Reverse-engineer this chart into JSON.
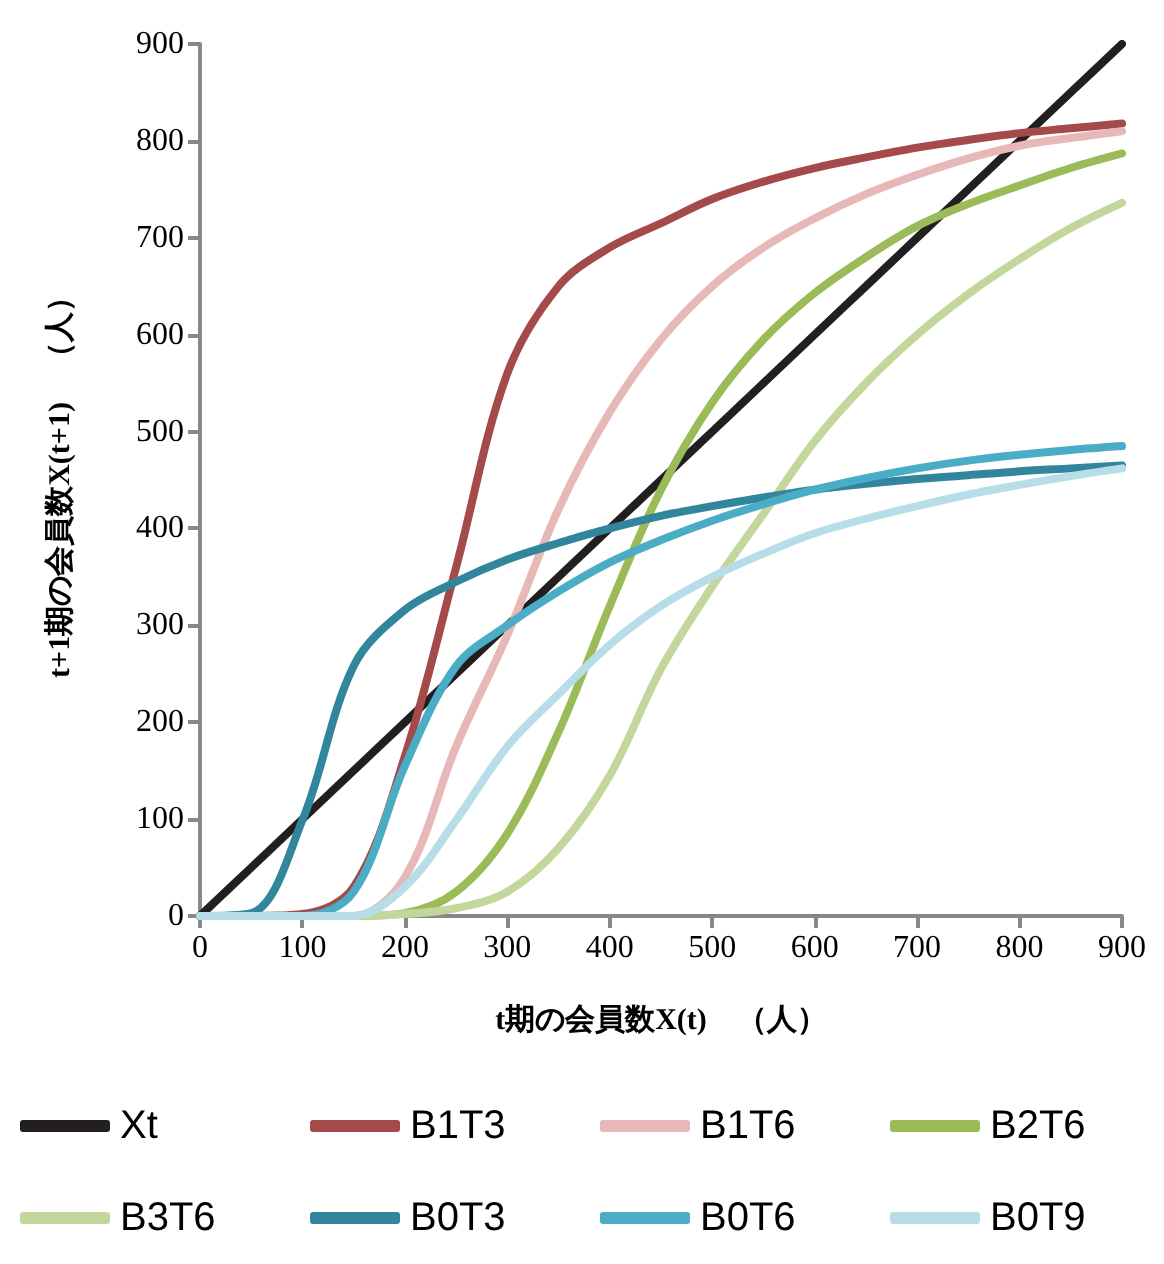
{
  "chart_data": {
    "type": "line",
    "xlabel": "t期の会員数X(t)　（人）",
    "ylabel": "t+1期の会員数X(t+1)　（人）",
    "x": [
      0,
      50,
      100,
      150,
      200,
      250,
      300,
      350,
      400,
      450,
      500,
      550,
      600,
      650,
      700,
      750,
      800,
      850,
      900
    ],
    "xlim": [
      0,
      900
    ],
    "xticks": [
      0,
      100,
      200,
      300,
      400,
      500,
      600,
      700,
      800,
      900
    ],
    "ylim": [
      0,
      900
    ],
    "yticks": [
      0,
      100,
      200,
      300,
      400,
      500,
      600,
      700,
      800,
      900
    ],
    "grid": false,
    "legend": "bottom",
    "marker": "none",
    "line_style": "solid",
    "series": [
      {
        "name": "Xt",
        "color": "#231f20",
        "values": [
          0,
          50,
          100,
          150,
          200,
          250,
          300,
          350,
          400,
          450,
          500,
          550,
          600,
          650,
          700,
          750,
          800,
          850,
          900
        ]
      },
      {
        "name": "B1T3",
        "color": "#a54a4a",
        "values": [
          0,
          0,
          2,
          30,
          165,
          360,
          560,
          650,
          690,
          715,
          740,
          758,
          772,
          783,
          793,
          801,
          808,
          813,
          818
        ]
      },
      {
        "name": "B1T6",
        "color": "#e6b9b8",
        "values": [
          0,
          0,
          0,
          0,
          40,
          175,
          290,
          420,
          520,
          595,
          650,
          690,
          720,
          745,
          765,
          782,
          795,
          803,
          810
        ]
      },
      {
        "name": "B2T6",
        "color": "#9bbb59",
        "values": [
          null,
          null,
          0,
          0,
          3,
          25,
          85,
          190,
          320,
          440,
          530,
          595,
          643,
          680,
          712,
          735,
          754,
          772,
          787
        ]
      },
      {
        "name": "B3T6",
        "color": "#c3d69b",
        "values": [
          0,
          0,
          0,
          0,
          2,
          8,
          25,
          70,
          145,
          255,
          340,
          415,
          490,
          550,
          600,
          642,
          678,
          710,
          736
        ]
      },
      {
        "name": "B0T3",
        "color": "#31859c",
        "values": [
          0,
          3,
          99,
          258,
          316,
          345,
          368,
          385,
          400,
          413,
          423,
          432,
          440,
          446,
          451,
          455,
          459,
          462,
          465
        ]
      },
      {
        "name": "B0T6",
        "color": "#4bacc6",
        "values": [
          0,
          0,
          0,
          25,
          155,
          258,
          300,
          335,
          365,
          388,
          408,
          425,
          440,
          452,
          462,
          470,
          476,
          481,
          485
        ]
      },
      {
        "name": "B0T9",
        "color": "#b7dee8",
        "values": [
          0,
          0,
          0,
          0,
          30,
          99,
          175,
          229,
          280,
          320,
          350,
          374,
          395,
          410,
          423,
          435,
          445,
          454,
          462
        ]
      }
    ]
  }
}
